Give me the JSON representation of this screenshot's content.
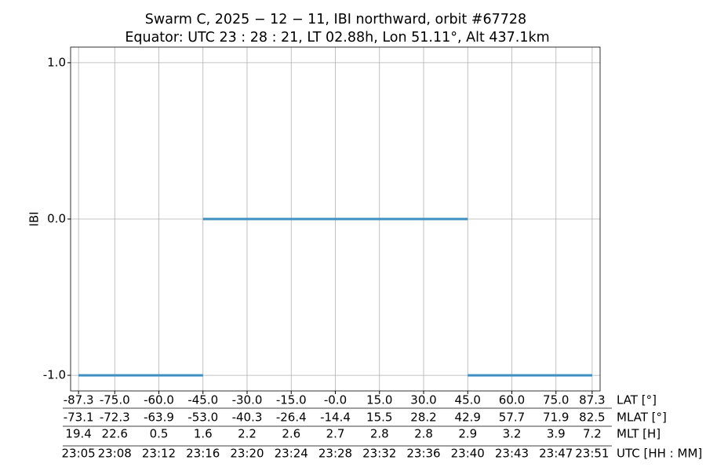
{
  "chart_data": {
    "type": "line",
    "title": "Swarm C, 2025 − 12 − 11, IBI northward, orbit #67728",
    "subtitle": "Equator: UTC 23 : 28 : 21, LT 02.88h, Lon 51.11°, Alt 437.1km",
    "ylabel": "IBI",
    "xlabel": "LAT [°]",
    "x": [
      -87.3,
      -45.0,
      -45.0,
      -45.0,
      45.0,
      45.0,
      45.0,
      87.3
    ],
    "series": [
      {
        "color": "#3f8fc2",
        "values": [
          -1,
          -1,
          null,
          0,
          0,
          null,
          -1,
          -1
        ]
      }
    ],
    "xlim": [
      -90,
      90
    ],
    "ylim": [
      -1.1,
      1.1
    ],
    "yticks": [
      {
        "value": -1,
        "label": "-1.0"
      },
      {
        "value": 0,
        "label": "0.0"
      },
      {
        "value": 1,
        "label": "1.0"
      }
    ],
    "xticks": [
      {
        "value": -87.3,
        "label": "-87.3"
      },
      {
        "value": -75,
        "label": "-75.0"
      },
      {
        "value": -60,
        "label": "-60.0"
      },
      {
        "value": -45,
        "label": "-45.0"
      },
      {
        "value": -30,
        "label": "-30.0"
      },
      {
        "value": -15,
        "label": "-15.0"
      },
      {
        "value": 0,
        "label": "-0.0"
      },
      {
        "value": 15,
        "label": "15.0"
      },
      {
        "value": 30,
        "label": "30.0"
      },
      {
        "value": 45,
        "label": "45.0"
      },
      {
        "value": 60,
        "label": "60.0"
      },
      {
        "value": 75,
        "label": "75.0"
      },
      {
        "value": 87.3,
        "label": "87.3"
      }
    ],
    "tick_rows": [
      {
        "name": "MLAT [°]",
        "labels": [
          "-73.1",
          "-72.3",
          "-63.9",
          "-53.0",
          "-40.3",
          "-26.4",
          "-14.4",
          "15.5",
          "28.2",
          "42.9",
          "57.7",
          "71.9",
          "82.5"
        ]
      },
      {
        "name": "MLT [H]",
        "labels": [
          "19.4",
          "22.6",
          "0.5",
          "1.6",
          "2.2",
          "2.6",
          "2.7",
          "2.8",
          "2.8",
          "2.9",
          "3.2",
          "3.9",
          "7.2"
        ]
      },
      {
        "name": "UTC [HH : MM]",
        "labels": [
          "23:05",
          "23:08",
          "23:12",
          "23:16",
          "23:20",
          "23:24",
          "23:28",
          "23:32",
          "23:36",
          "23:40",
          "23:43",
          "23:47",
          "23:51"
        ]
      }
    ],
    "grid": true
  }
}
